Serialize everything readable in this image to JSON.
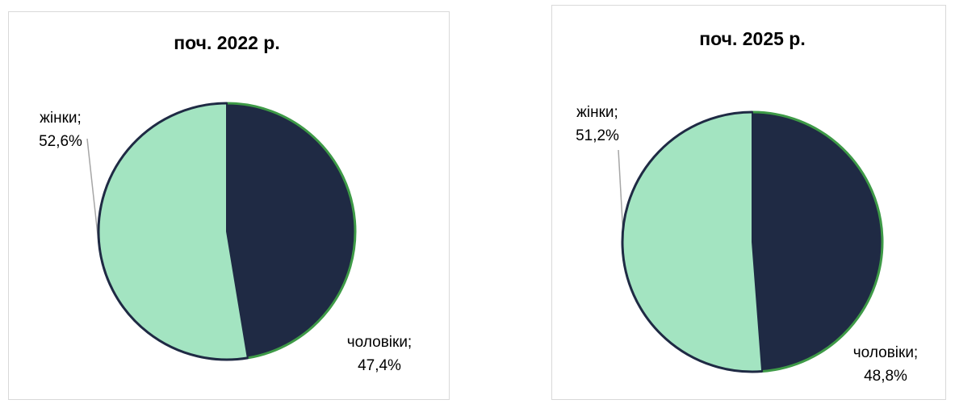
{
  "chart_data": [
    {
      "type": "pie",
      "title": "поч. 2022 р.",
      "categories": [
        "чоловіки;",
        "жінки;"
      ],
      "values": [
        47.4,
        52.6
      ],
      "value_labels": [
        "47,4%",
        "52,6%"
      ],
      "colors": [
        "#1f2a44",
        "#a3e4c1"
      ]
    },
    {
      "type": "pie",
      "title": "поч. 2025 р.",
      "categories": [
        "чоловіки;",
        "жінки;"
      ],
      "values": [
        48.8,
        51.2
      ],
      "value_labels": [
        "48,8%",
        "51,2%"
      ],
      "colors": [
        "#1f2a44",
        "#a3e4c1"
      ]
    }
  ]
}
